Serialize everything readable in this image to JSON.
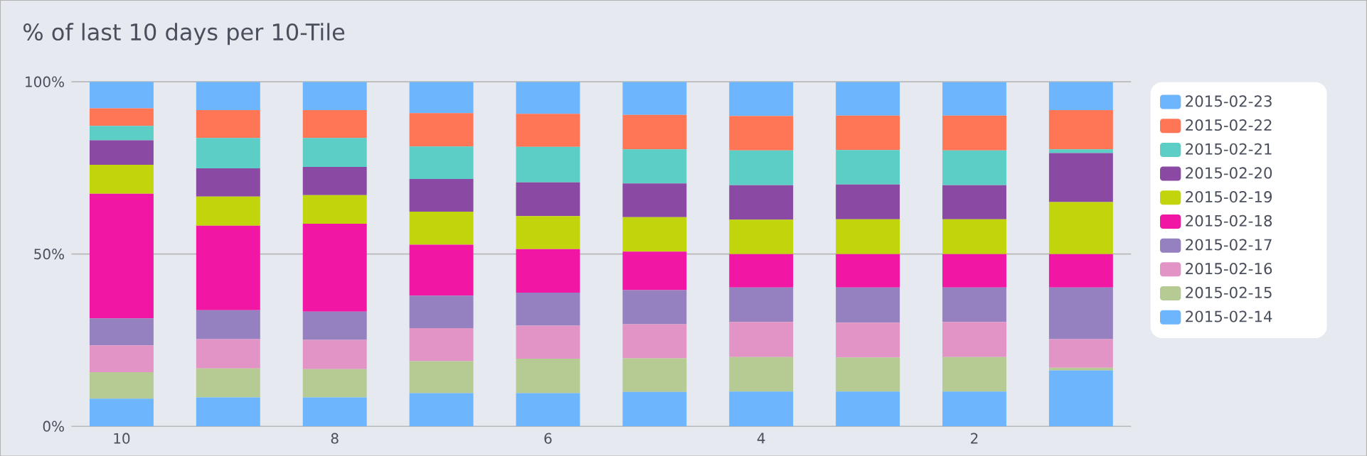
{
  "chart_data": {
    "type": "bar",
    "stacked": true,
    "title": "% of last 10 days per 10-Tile",
    "categories": [
      "10",
      null,
      "8",
      null,
      "6",
      null,
      "4",
      null,
      "2",
      null
    ],
    "series": [
      {
        "name": "2015-02-14",
        "color": "#6db6fe",
        "values": [
          8.0,
          8.4,
          8.4,
          9.6,
          9.6,
          10.0,
          10.1,
          10.1,
          10.1,
          16.2
        ]
      },
      {
        "name": "2015-02-15",
        "color": "#b6ca93",
        "values": [
          7.7,
          8.4,
          8.2,
          9.3,
          10.0,
          9.7,
          10.0,
          9.9,
          10.0,
          0.8
        ]
      },
      {
        "name": "2015-02-16",
        "color": "#e394c6",
        "values": [
          7.8,
          8.5,
          8.5,
          9.6,
          9.6,
          9.9,
          10.2,
          10.1,
          10.2,
          8.3
        ]
      },
      {
        "name": "2015-02-17",
        "color": "#9580c0",
        "values": [
          7.8,
          8.4,
          8.2,
          9.4,
          9.6,
          9.9,
          10.0,
          10.2,
          10.0,
          15.0
        ]
      },
      {
        "name": "2015-02-18",
        "color": "#f216a5",
        "values": [
          36.2,
          24.5,
          25.5,
          14.8,
          12.6,
          11.2,
          9.7,
          9.7,
          9.7,
          9.7
        ]
      },
      {
        "name": "2015-02-19",
        "color": "#c2d40c",
        "values": [
          8.4,
          8.5,
          8.3,
          9.6,
          9.6,
          10.0,
          10.0,
          10.1,
          10.1,
          15.1
        ]
      },
      {
        "name": "2015-02-20",
        "color": "#8a4aa3",
        "values": [
          7.1,
          8.2,
          8.2,
          9.5,
          9.8,
          9.8,
          10.0,
          10.1,
          9.9,
          14.2
        ]
      },
      {
        "name": "2015-02-21",
        "color": "#5ccec5",
        "values": [
          4.2,
          8.8,
          8.4,
          9.4,
          10.3,
          9.9,
          10.1,
          10.0,
          10.1,
          1.1
        ]
      },
      {
        "name": "2015-02-22",
        "color": "#ff7657",
        "values": [
          5.1,
          8.1,
          8.1,
          9.7,
          9.6,
          10.0,
          10.0,
          10.0,
          10.1,
          11.4
        ]
      },
      {
        "name": "2015-02-23",
        "color": "#6db6fe",
        "values": [
          7.8,
          8.2,
          8.2,
          9.1,
          9.3,
          9.6,
          9.9,
          9.8,
          9.7,
          8.2
        ]
      }
    ],
    "ylim": [
      0,
      100
    ],
    "yticks": [
      {
        "value": 0,
        "label": "0%"
      },
      {
        "value": 50,
        "label": "50%"
      },
      {
        "value": 100,
        "label": "100%"
      }
    ],
    "grid": "y",
    "legend": "right"
  }
}
